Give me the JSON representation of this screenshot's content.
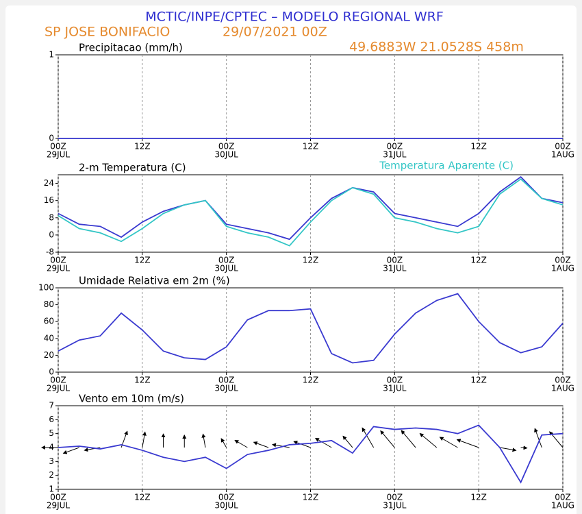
{
  "header": {
    "title": "MCTIC/INPE/CPTEC – MODELO REGIONAL WRF",
    "station": "SP JOSE BONIFACIO",
    "run": "29/07/2021 00Z",
    "location": "49.6883W 21.0528S 458m"
  },
  "chart_data": [
    {
      "type": "line",
      "title": "Precipitacao (mm/h)",
      "x": [
        0,
        3,
        6,
        9,
        12,
        15,
        18,
        21,
        24,
        27,
        30,
        33,
        36,
        39,
        42,
        45,
        48,
        51,
        54,
        57,
        60,
        63,
        66,
        69,
        72
      ],
      "series": [
        {
          "color": "#3333cc",
          "values": [
            0,
            0,
            0,
            0,
            0,
            0,
            0,
            0,
            0,
            0,
            0,
            0,
            0,
            0,
            0,
            0,
            0,
            0,
            0,
            0,
            0,
            0,
            0,
            0,
            0
          ]
        }
      ],
      "xlim": [
        0,
        72
      ],
      "ylim": [
        0,
        1
      ],
      "yticks": [
        0,
        1
      ],
      "xticks": [
        {
          "value": 0,
          "label": "00Z"
        },
        {
          "value": 12,
          "label": "12Z"
        },
        {
          "value": 24,
          "label": "00Z"
        },
        {
          "value": 36,
          "label": "12Z"
        },
        {
          "value": 48,
          "label": "00Z"
        },
        {
          "value": 60,
          "label": "12Z"
        },
        {
          "value": 72,
          "label": "00Z"
        }
      ],
      "xtick_dates": [
        {
          "value": 0,
          "label": "29JUL"
        },
        {
          "value": 24,
          "label": "30JUL"
        },
        {
          "value": 48,
          "label": "31JUL"
        },
        {
          "value": 72,
          "label": "1AUG"
        }
      ],
      "grid": true
    },
    {
      "type": "line",
      "title": "2-m Temperatura (C)",
      "x": [
        0,
        3,
        6,
        9,
        12,
        15,
        18,
        21,
        24,
        27,
        30,
        33,
        36,
        39,
        42,
        45,
        48,
        51,
        54,
        57,
        60,
        63,
        66,
        69,
        72
      ],
      "series": [
        {
          "color": "#3a3ad0",
          "values": [
            10,
            5,
            4,
            -1,
            6,
            11,
            14,
            16,
            5,
            3,
            1,
            -2,
            8,
            17,
            22,
            20,
            10,
            8,
            6,
            4,
            10,
            20,
            27,
            17,
            15
          ]
        },
        {
          "name": "Temperatura Aparente (C)",
          "color": "#33c6c6",
          "values": [
            9,
            3,
            1,
            -3,
            3,
            10,
            14,
            16,
            4,
            1,
            -1,
            -5,
            6,
            16,
            22,
            19,
            8,
            6,
            3,
            1,
            4,
            19,
            26,
            17,
            14
          ]
        }
      ],
      "xlim": [
        0,
        72
      ],
      "ylim": [
        -8,
        28
      ],
      "yticks": [
        -8,
        0,
        8,
        16,
        24
      ],
      "xticks": [
        {
          "value": 0,
          "label": "00Z"
        },
        {
          "value": 12,
          "label": "12Z"
        },
        {
          "value": 24,
          "label": "00Z"
        },
        {
          "value": 36,
          "label": "12Z"
        },
        {
          "value": 48,
          "label": "00Z"
        },
        {
          "value": 60,
          "label": "12Z"
        },
        {
          "value": 72,
          "label": "00Z"
        }
      ],
      "xtick_dates": [
        {
          "value": 0,
          "label": "29JUL"
        },
        {
          "value": 24,
          "label": "30JUL"
        },
        {
          "value": 48,
          "label": "31JUL"
        },
        {
          "value": 72,
          "label": "1AUG"
        }
      ],
      "grid": true
    },
    {
      "type": "line",
      "title": "Umidade Relativa em 2m (%)",
      "x": [
        0,
        3,
        6,
        9,
        12,
        15,
        18,
        21,
        24,
        27,
        30,
        33,
        36,
        39,
        42,
        45,
        48,
        51,
        54,
        57,
        60,
        63,
        66,
        69,
        72
      ],
      "series": [
        {
          "color": "#3a3ad0",
          "values": [
            25,
            38,
            43,
            70,
            50,
            25,
            17,
            15,
            30,
            62,
            73,
            73,
            75,
            22,
            11,
            14,
            45,
            70,
            85,
            93,
            60,
            35,
            23,
            30,
            58
          ]
        }
      ],
      "xlim": [
        0,
        72
      ],
      "ylim": [
        0,
        100
      ],
      "yticks": [
        0,
        20,
        40,
        60,
        80,
        100
      ],
      "xticks": [
        {
          "value": 0,
          "label": "00Z"
        },
        {
          "value": 12,
          "label": "12Z"
        },
        {
          "value": 24,
          "label": "00Z"
        },
        {
          "value": 36,
          "label": "12Z"
        },
        {
          "value": 48,
          "label": "00Z"
        },
        {
          "value": 60,
          "label": "12Z"
        },
        {
          "value": 72,
          "label": "00Z"
        }
      ],
      "xtick_dates": [
        {
          "value": 0,
          "label": "29JUL"
        },
        {
          "value": 24,
          "label": "30JUL"
        },
        {
          "value": 48,
          "label": "31JUL"
        },
        {
          "value": 72,
          "label": "1AUG"
        }
      ],
      "grid": true
    },
    {
      "type": "wind",
      "title": "Vento em 10m (m/s)",
      "x": [
        0,
        3,
        6,
        9,
        12,
        15,
        18,
        21,
        24,
        27,
        30,
        33,
        36,
        39,
        42,
        45,
        48,
        51,
        54,
        57,
        60,
        63,
        66,
        69,
        72
      ],
      "series": [
        {
          "color": "#3a3ad0",
          "values": [
            4,
            4.1,
            3.9,
            4.2,
            3.8,
            3.3,
            3,
            3.3,
            2.5,
            3.5,
            3.8,
            4.2,
            4.3,
            4.5,
            3.6,
            5.5,
            5.3,
            5.4,
            5.3,
            5,
            5.6,
            4,
            1.5,
            4.9,
            5
          ]
        }
      ],
      "directions": [
        270,
        250,
        260,
        20,
        10,
        0,
        0,
        350,
        330,
        300,
        290,
        280,
        290,
        300,
        320,
        330,
        320,
        320,
        310,
        300,
        290,
        100,
        95,
        340,
        320
      ],
      "xlim": [
        0,
        72
      ],
      "ylim": [
        1,
        7
      ],
      "yticks": [
        1,
        2,
        3,
        4,
        5,
        6,
        7
      ],
      "xticks": [
        {
          "value": 0,
          "label": "00Z"
        },
        {
          "value": 12,
          "label": "12Z"
        },
        {
          "value": 24,
          "label": "00Z"
        },
        {
          "value": 36,
          "label": "12Z"
        },
        {
          "value": 48,
          "label": "00Z"
        },
        {
          "value": 60,
          "label": "12Z"
        },
        {
          "value": 72,
          "label": "00Z"
        }
      ],
      "xtick_dates": [
        {
          "value": 0,
          "label": "29JUL"
        },
        {
          "value": 24,
          "label": "30JUL"
        },
        {
          "value": 48,
          "label": "31JUL"
        },
        {
          "value": 72,
          "label": "1AUG"
        }
      ],
      "grid": true
    }
  ]
}
